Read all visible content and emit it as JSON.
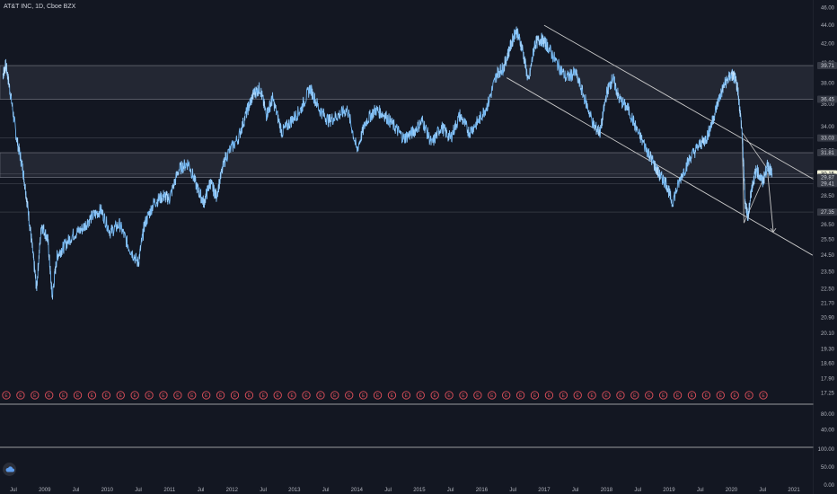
{
  "header": {
    "title": "AT&T INC, 1D, Cboe BZX"
  },
  "colors": {
    "background": "#131722",
    "price_line": "#4aa3f0",
    "zone": "#2a2e39",
    "drawing": "#c8c8c8",
    "earnings_marker": "#e0505b"
  },
  "chart_data": [
    {
      "type": "line",
      "title": "AT&T INC, 1D, Cboe BZX",
      "x_ticks": [
        "Jul",
        "2009",
        "Jul",
        "2010",
        "Jul",
        "2011",
        "Jul",
        "2012",
        "Jul",
        "2013",
        "Jul",
        "2014",
        "Jul",
        "2015",
        "Jul",
        "2016",
        "Jul",
        "2017",
        "Jul",
        "2018",
        "Jul",
        "2019",
        "Jul",
        "2020",
        "Jul",
        "2021"
      ],
      "x_range": [
        2008.3,
        2021.4
      ],
      "y_scale": "log",
      "y_ticks": [
        "46.00",
        "44.00",
        "42.00",
        "40.00",
        "38.00",
        "36.00",
        "34.00",
        "32.00",
        "30.00",
        "28.50",
        "26.50",
        "25.50",
        "24.50",
        "23.50",
        "22.50",
        "21.70",
        "20.90",
        "20.10",
        "19.30",
        "18.60",
        "17.90",
        "17.25"
      ],
      "y_range": [
        17.0,
        46.5
      ],
      "price_labels": [
        "39.71",
        "36.45",
        "33.03",
        "31.81",
        "30.15",
        "29.87",
        "29.41",
        "27.35"
      ],
      "current_price": "30.15",
      "zones": [
        [
          36.45,
          39.71
        ],
        [
          29.87,
          31.81
        ]
      ],
      "series": [
        {
          "x": [
            2008.33,
            2008.38,
            2008.45,
            2008.55,
            2008.65,
            2008.72,
            2008.8,
            2008.87,
            2008.95,
            2009.05,
            2009.12,
            2009.2,
            2009.3,
            2009.45,
            2009.6,
            2009.75,
            2009.9,
            2010.05,
            2010.2,
            2010.35,
            2010.5,
            2010.6,
            2010.75,
            2010.9,
            2011.0,
            2011.15,
            2011.3,
            2011.45,
            2011.55,
            2011.65,
            2011.75,
            2011.9,
            2012.1,
            2012.25,
            2012.35,
            2012.45,
            2012.55,
            2012.65,
            2012.8,
            2012.95,
            2013.1,
            2013.25,
            2013.4,
            2013.55,
            2013.7,
            2013.85,
            2014.0,
            2014.15,
            2014.3,
            2014.45,
            2014.6,
            2014.75,
            2014.9,
            2015.05,
            2015.2,
            2015.35,
            2015.5,
            2015.65,
            2015.8,
            2015.95,
            2016.1,
            2016.25,
            2016.35,
            2016.45,
            2016.55,
            2016.65,
            2016.75,
            2016.85,
            2016.95,
            2017.05,
            2017.2,
            2017.35,
            2017.5,
            2017.65,
            2017.8,
            2017.9,
            2018.0,
            2018.1,
            2018.2,
            2018.35,
            2018.5,
            2018.65,
            2018.75,
            2018.85,
            2018.95,
            2019.05,
            2019.2,
            2019.35,
            2019.5,
            2019.6,
            2019.7,
            2019.8,
            2019.9,
            2020.0,
            2020.05,
            2020.1,
            2020.17,
            2020.22,
            2020.27,
            2020.32,
            2020.4,
            2020.5,
            2020.58,
            2020.65
          ],
          "y": [
            38.8,
            39.8,
            37.0,
            33.0,
            30.5,
            28.0,
            25.0,
            22.5,
            26.5,
            25.5,
            22.0,
            24.5,
            25.0,
            25.8,
            26.2,
            27.0,
            27.5,
            26.0,
            26.5,
            25.0,
            24.0,
            26.5,
            28.0,
            28.5,
            28.3,
            30.5,
            31.0,
            29.0,
            28.0,
            29.5,
            28.5,
            31.5,
            33.0,
            35.5,
            37.0,
            37.5,
            35.0,
            36.5,
            33.5,
            34.5,
            35.5,
            37.5,
            35.5,
            34.5,
            35.0,
            35.5,
            32.0,
            34.5,
            35.5,
            35.0,
            34.0,
            33.0,
            33.5,
            34.5,
            32.5,
            34.0,
            33.0,
            35.0,
            33.5,
            34.5,
            36.0,
            39.0,
            39.5,
            41.5,
            43.5,
            41.5,
            38.0,
            42.0,
            42.5,
            41.8,
            40.0,
            38.5,
            39.0,
            36.5,
            34.0,
            33.5,
            37.0,
            38.5,
            36.5,
            35.5,
            33.5,
            32.0,
            31.0,
            30.0,
            29.5,
            28.0,
            30.0,
            31.5,
            32.5,
            33.0,
            34.5,
            36.5,
            38.0,
            38.8,
            38.5,
            37.5,
            33.5,
            28.0,
            27.0,
            29.0,
            30.5,
            29.5,
            30.8,
            30.15
          ],
          "color": "#4aa3f0"
        }
      ],
      "annotations": [
        {
          "type": "channel_upper",
          "from": [
            2017.0,
            44.0
          ],
          "to": [
            2021.4,
            29.5
          ]
        },
        {
          "type": "channel_lower",
          "from": [
            2016.4,
            38.5
          ],
          "to": [
            2021.3,
            24.5
          ]
        },
        {
          "type": "triangle",
          "points": [
            [
              2020.17,
              33.5
            ],
            [
              2020.2,
              26.6
            ],
            [
              2020.58,
              30.5
            ]
          ]
        },
        {
          "type": "projection_arrow",
          "from": [
            2020.58,
            30.2
          ],
          "to": [
            2020.67,
            26.0
          ]
        }
      ],
      "earnings_markers": [
        "E",
        "E",
        "E",
        "E",
        "E",
        "E",
        "E",
        "E",
        "E",
        "E",
        "E",
        "E",
        "E",
        "E",
        "E",
        "E",
        "E",
        "E",
        "E",
        "E",
        "E",
        "E",
        "E",
        "E",
        "E",
        "E",
        "E",
        "E",
        "E",
        "E",
        "E",
        "E",
        "E",
        "E",
        "E",
        "E",
        "E",
        "E",
        "E",
        "E",
        "E",
        "E",
        "E",
        "E",
        "E",
        "E",
        "E",
        "E",
        "E",
        "E",
        "E",
        "E",
        "E",
        "E"
      ]
    },
    {
      "type": "line",
      "y_ticks": [
        "80.00",
        "40.00"
      ],
      "y_range": [
        0,
        100
      ],
      "series": []
    },
    {
      "type": "line",
      "y_ticks": [
        "100.00",
        "50.00",
        "0.00"
      ],
      "y_range": [
        0,
        100
      ],
      "series": []
    }
  ]
}
